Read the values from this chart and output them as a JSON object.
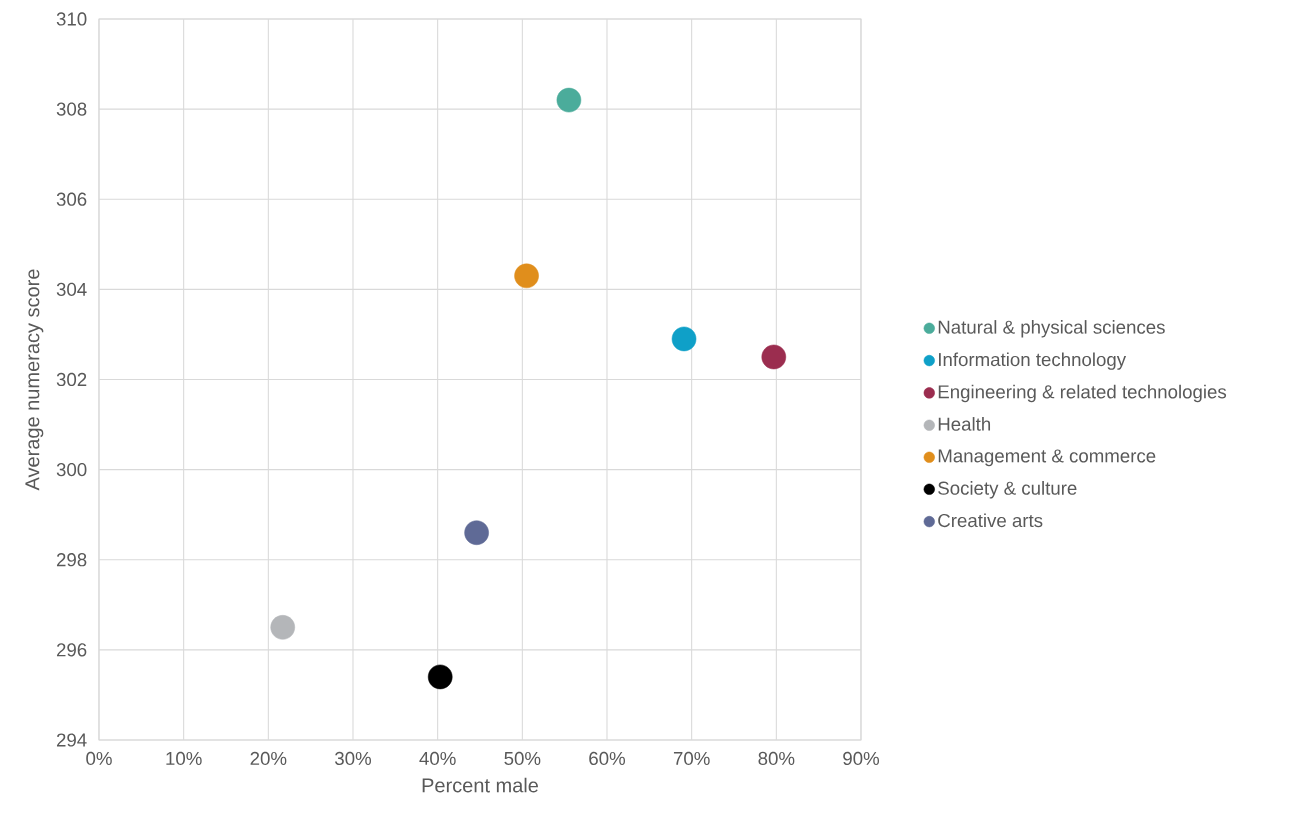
{
  "chart_data": {
    "type": "scatter",
    "xlabel": "Percent male",
    "ylabel": "Average numeracy score",
    "xlim": [
      0,
      90
    ],
    "ylim": [
      294,
      310
    ],
    "xticks": [
      {
        "value": 0,
        "label": "0%"
      },
      {
        "value": 10,
        "label": "10%"
      },
      {
        "value": 20,
        "label": "20%"
      },
      {
        "value": 30,
        "label": "30%"
      },
      {
        "value": 40,
        "label": "40%"
      },
      {
        "value": 50,
        "label": "50%"
      },
      {
        "value": 60,
        "label": "60%"
      },
      {
        "value": 70,
        "label": "70%"
      },
      {
        "value": 80,
        "label": "80%"
      },
      {
        "value": 90,
        "label": "90%"
      }
    ],
    "yticks": [
      294,
      296,
      298,
      300,
      302,
      304,
      306,
      308,
      310
    ],
    "grid": true,
    "legend": "right",
    "marker": "circle",
    "series": [
      {
        "name": "Natural & physical sciences",
        "color": "#4bac9b",
        "x": [
          55.5
        ],
        "values": [
          308.2
        ]
      },
      {
        "name": "Information technology",
        "color": "#0fa0c8",
        "x": [
          69.1
        ],
        "values": [
          302.9
        ]
      },
      {
        "name": "Engineering & related technologies",
        "color": "#9b2d4f",
        "x": [
          79.7
        ],
        "values": [
          302.5
        ]
      },
      {
        "name": "Health",
        "color": "#b4b6b9",
        "x": [
          21.7
        ],
        "values": [
          296.5
        ]
      },
      {
        "name": "Management & commerce",
        "color": "#e08e1c",
        "x": [
          50.5
        ],
        "values": [
          304.3
        ]
      },
      {
        "name": "Society & culture",
        "color": "#000000",
        "x": [
          40.3
        ],
        "values": [
          295.4
        ]
      },
      {
        "name": "Creative arts",
        "color": "#5f6a96",
        "x": [
          44.6
        ],
        "values": [
          298.6
        ]
      }
    ]
  }
}
